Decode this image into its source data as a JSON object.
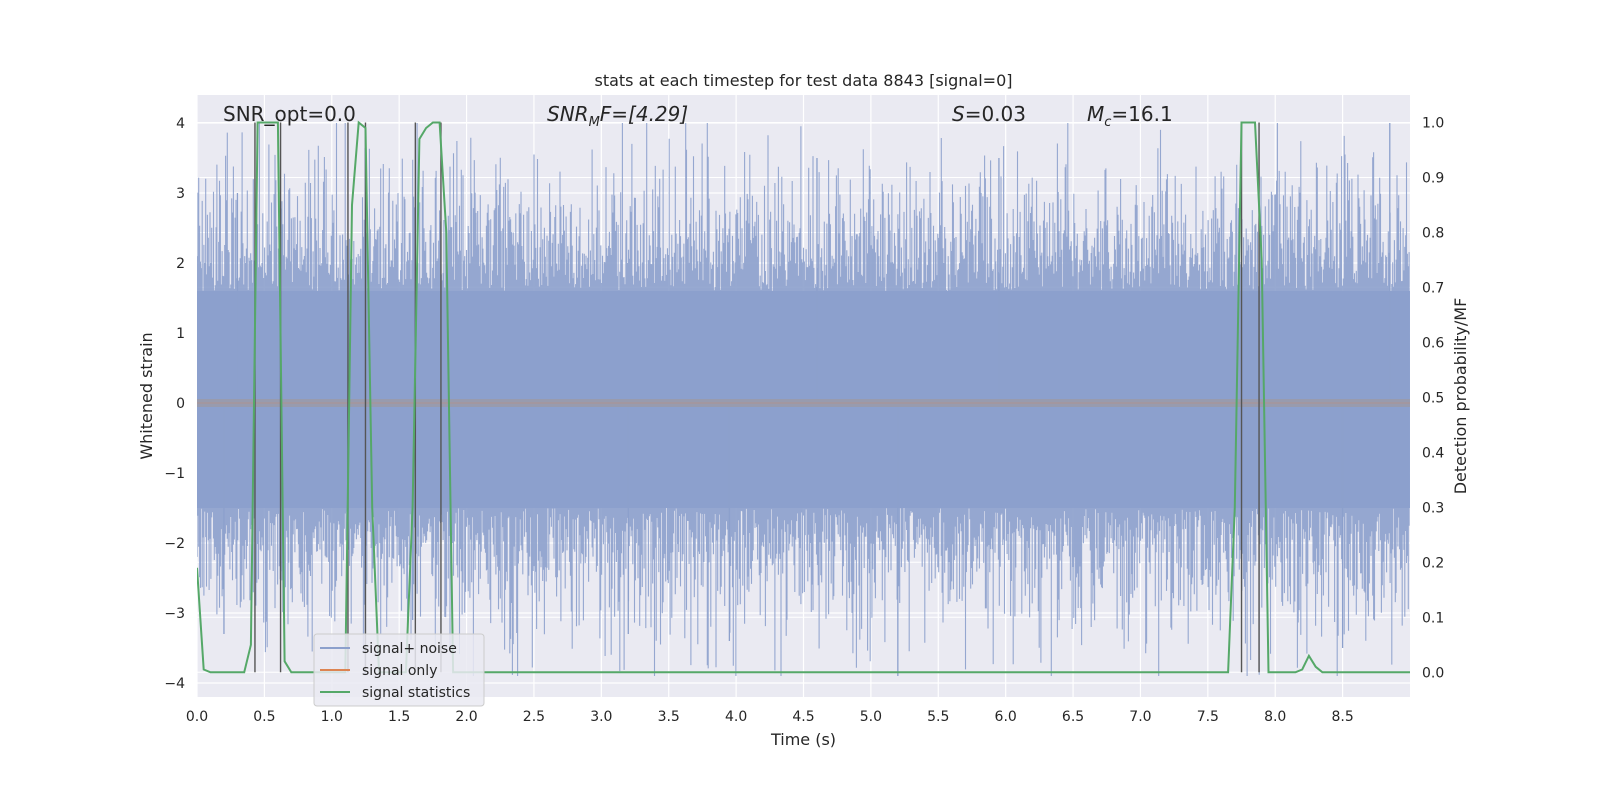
{
  "chart_data": {
    "type": "line",
    "title": "stats at each timestep for test data 8843 [signal=0]",
    "xlabel": "Time (s)",
    "ylabel": "Whitened strain",
    "ylabel_right": "Detection probability/MF",
    "xlim": [
      0.0,
      9.0
    ],
    "ylim": [
      -4.2,
      4.4
    ],
    "ylim_right": [
      -0.045,
      1.05
    ],
    "xticks": [
      "0.0",
      "0.5",
      "1.0",
      "1.5",
      "2.0",
      "2.5",
      "3.0",
      "3.5",
      "4.0",
      "4.5",
      "5.0",
      "5.5",
      "6.0",
      "6.5",
      "7.0",
      "7.5",
      "8.0",
      "8.5"
    ],
    "yticks": [
      "-4",
      "-3",
      "-2",
      "-1",
      "0",
      "1",
      "2",
      "3",
      "4"
    ],
    "yticks_right": [
      "0.0",
      "0.1",
      "0.2",
      "0.3",
      "0.4",
      "0.5",
      "0.6",
      "0.7",
      "0.8",
      "0.9",
      "1.0"
    ],
    "grid": true,
    "legend_placement": "lower-left",
    "annotations": {
      "snr_opt": "SNR_opt=0.0",
      "snr_mf_main": "SNR",
      "snr_mf_sub": "M",
      "snr_mf_tail": "F=[4.29]",
      "s_main": "S",
      "s_tail": "=0.03",
      "mc_main": "M",
      "mc_sub": "c",
      "mc_tail": "=16.1"
    },
    "series": [
      {
        "name": "signal+ noise",
        "color": "#8ca0cc",
        "axis": "left",
        "description_values": {
          "t_start": 0.0,
          "t_end": 9.0,
          "typical_envelope": [
            -1.5,
            1.6
          ],
          "peak_max": 4.0,
          "peak_min": -3.9
        }
      },
      {
        "name": "signal only",
        "color": "#dd8452",
        "axis": "left",
        "values_constant": 0.0
      },
      {
        "name": "signal statistics",
        "color": "#55a868",
        "axis": "right",
        "x": [
          0.0,
          0.05,
          0.1,
          0.15,
          0.2,
          0.25,
          0.3,
          0.35,
          0.4,
          0.45,
          0.5,
          0.55,
          0.6,
          0.65,
          0.7,
          0.75,
          0.8,
          0.85,
          0.9,
          0.95,
          1.0,
          1.05,
          1.1,
          1.15,
          1.2,
          1.25,
          1.3,
          1.35,
          1.4,
          1.45,
          1.5,
          1.55,
          1.6,
          1.65,
          1.7,
          1.75,
          1.8,
          1.85,
          1.9,
          1.95,
          2.0,
          7.65,
          7.7,
          7.75,
          7.8,
          7.85,
          7.9,
          7.95,
          8.0,
          8.05,
          8.1,
          8.15,
          8.2,
          8.25,
          8.3,
          8.35,
          8.4,
          8.5,
          8.6,
          8.7,
          8.8,
          8.9,
          9.0
        ],
        "values": [
          0.19,
          0.005,
          0.0,
          0.0,
          0.0,
          0.0,
          0.0,
          0.0,
          0.05,
          1.0,
          1.0,
          1.0,
          1.0,
          0.02,
          0.0,
          0.0,
          0.0,
          0.0,
          0.0,
          0.0,
          0.0,
          0.0,
          0.0,
          0.85,
          1.0,
          0.99,
          0.3,
          0.0,
          0.0,
          0.0,
          0.0,
          0.0,
          0.3,
          0.97,
          0.99,
          1.0,
          1.0,
          0.8,
          0.0,
          0.0,
          0.0,
          0.0,
          0.3,
          1.0,
          1.0,
          1.0,
          0.75,
          0.0,
          0.0,
          0.0,
          0.0,
          0.0,
          0.005,
          0.03,
          0.01,
          0.0,
          0.0,
          0.0,
          0.0,
          0.0,
          0.0,
          0.0,
          0.0
        ]
      }
    ],
    "vertical_markers_x": [
      0.43,
      0.62,
      1.12,
      1.25,
      1.62,
      1.81,
      7.75,
      7.88
    ]
  }
}
